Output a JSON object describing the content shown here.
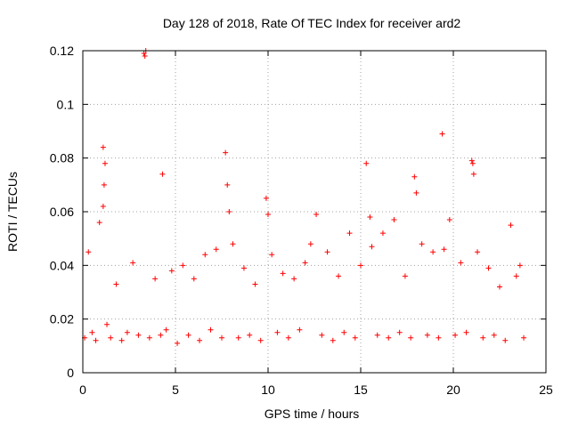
{
  "chart_data": {
    "type": "scatter",
    "title": "Day 128 of 2018, Rate Of TEC Index for receiver ard2",
    "xlabel": "GPS time / hours",
    "ylabel": "ROTI / TECUs",
    "xlim": [
      0,
      25
    ],
    "ylim": [
      0,
      0.12
    ],
    "xticks": [
      "0",
      "5",
      "10",
      "15",
      "20",
      "25"
    ],
    "yticks": [
      "0",
      "0.02",
      "0.04",
      "0.06",
      "0.08",
      "0.1",
      "0.12"
    ],
    "grid": true,
    "marker": "+",
    "color": "#ff0000",
    "series": [
      {
        "name": "ROTI",
        "x": [
          0.1,
          0.3,
          0.5,
          0.7,
          0.9,
          1.1,
          1.2,
          1.15,
          1.1,
          1.3,
          1.5,
          1.8,
          2.1,
          2.4,
          2.7,
          3.0,
          3.3,
          3.35,
          3.4,
          3.6,
          3.9,
          4.2,
          4.3,
          4.5,
          4.8,
          5.1,
          5.4,
          5.7,
          6.0,
          6.3,
          6.6,
          6.9,
          7.2,
          7.5,
          7.7,
          7.8,
          7.9,
          8.1,
          8.4,
          8.7,
          9.0,
          9.3,
          9.6,
          9.9,
          10.0,
          10.2,
          10.5,
          10.8,
          11.1,
          11.4,
          11.7,
          12.0,
          12.3,
          12.6,
          12.9,
          13.2,
          13.5,
          13.8,
          14.1,
          14.4,
          14.7,
          15.0,
          15.3,
          15.5,
          15.6,
          15.9,
          16.2,
          16.5,
          16.8,
          17.1,
          17.4,
          17.7,
          17.9,
          18.0,
          18.3,
          18.6,
          18.9,
          19.2,
          19.4,
          19.5,
          19.8,
          20.1,
          20.4,
          20.7,
          21.0,
          21.05,
          21.1,
          21.3,
          21.6,
          21.9,
          22.2,
          22.5,
          22.8,
          23.1,
          23.4,
          23.6,
          23.8
        ],
        "y": [
          0.013,
          0.045,
          0.015,
          0.012,
          0.056,
          0.084,
          0.078,
          0.07,
          0.062,
          0.018,
          0.013,
          0.033,
          0.012,
          0.015,
          0.041,
          0.014,
          0.119,
          0.118,
          0.12,
          0.013,
          0.035,
          0.014,
          0.074,
          0.016,
          0.038,
          0.011,
          0.04,
          0.014,
          0.035,
          0.012,
          0.044,
          0.016,
          0.046,
          0.013,
          0.082,
          0.07,
          0.06,
          0.048,
          0.013,
          0.039,
          0.014,
          0.033,
          0.012,
          0.065,
          0.059,
          0.044,
          0.015,
          0.037,
          0.013,
          0.035,
          0.016,
          0.041,
          0.048,
          0.059,
          0.014,
          0.045,
          0.012,
          0.036,
          0.015,
          0.052,
          0.013,
          0.04,
          0.078,
          0.058,
          0.047,
          0.014,
          0.052,
          0.013,
          0.057,
          0.015,
          0.036,
          0.013,
          0.073,
          0.067,
          0.048,
          0.014,
          0.045,
          0.013,
          0.089,
          0.046,
          0.057,
          0.014,
          0.041,
          0.015,
          0.079,
          0.078,
          0.074,
          0.045,
          0.013,
          0.039,
          0.014,
          0.032,
          0.012,
          0.055,
          0.036,
          0.04,
          0.013
        ]
      }
    ]
  }
}
